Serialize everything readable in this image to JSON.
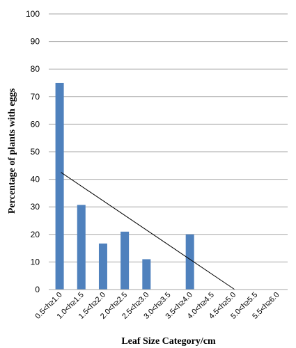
{
  "chart_data": {
    "type": "bar",
    "title": "",
    "xlabel": "Leaf Size Category/cm",
    "ylabel": "Percentage of plants with eggs",
    "ylim": [
      0,
      100
    ],
    "yticks": [
      0,
      10,
      20,
      30,
      40,
      50,
      60,
      70,
      80,
      90,
      100
    ],
    "grid": true,
    "categories": [
      "0.5<h≥1.0",
      "1.0<h≥1.5",
      "1.5<h≥2.0",
      "2.0<h≥2.5",
      "2.5<h≥3.0",
      "3.0<h≥3.5",
      "3.5<h≥4.0",
      "4.0<h≥4.5",
      "4.5<h≥5.0",
      "5.0<h≥5.5",
      "5.5<h≥6.0"
    ],
    "values": [
      75,
      30.7,
      16.7,
      21,
      11,
      0,
      20,
      0,
      0,
      0,
      0
    ],
    "trendline": {
      "start_category_index": 0,
      "start_value": 42.5,
      "end_category_index": 8,
      "end_value": 0
    },
    "colors": {
      "bar": "#4f81bd",
      "grid": "#a6a6a6",
      "trendline": "#000000"
    }
  }
}
